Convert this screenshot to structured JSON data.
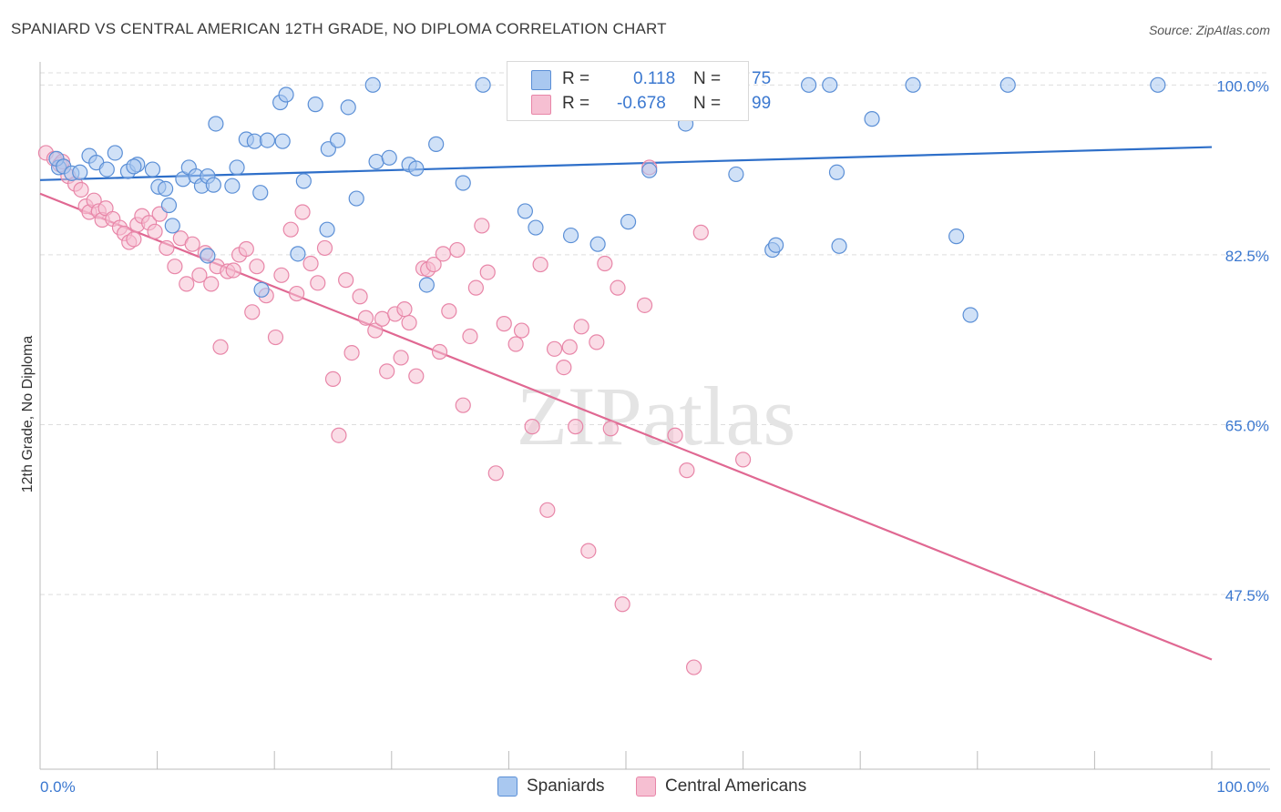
{
  "title": "SPANIARD VS CENTRAL AMERICAN 12TH GRADE, NO DIPLOMA CORRELATION CHART",
  "source": "Source: ZipAtlas.com",
  "watermark": "ZIPatlas",
  "legend_top": [
    {
      "r_label": "R =",
      "r_value": "0.118",
      "n_label": "N =",
      "n_value": "75"
    },
    {
      "r_label": "R =",
      "r_value": "-0.678",
      "n_label": "N =",
      "n_value": "99"
    }
  ],
  "legend_bottom": [
    "Spaniards",
    "Central Americans"
  ],
  "colors": {
    "spaniards_fill": "#a9c8f0",
    "spaniards_stroke": "#5b8fd6",
    "spaniards_line": "#2e6fc9",
    "central_fill": "#f6bfd2",
    "central_stroke": "#e886a8",
    "central_line": "#e06892",
    "accent_text": "#3b78d0",
    "grid": "#dddddd"
  },
  "chart_data": {
    "type": "scatter",
    "title": "SPANIARD VS CENTRAL AMERICAN 12TH GRADE, NO DIPLOMA CORRELATION CHART",
    "xlabel": "",
    "ylabel": "12th Grade, No Diploma",
    "xlim": [
      0,
      100
    ],
    "ylim": [
      29.5,
      102
    ],
    "x_tick_labels": [
      "0.0%",
      "100.0%"
    ],
    "y_ticks": [
      100.0,
      82.5,
      65.0,
      47.5
    ],
    "y_tick_labels": [
      "100.0%",
      "82.5%",
      "65.0%",
      "47.5%"
    ],
    "grid": true,
    "legend_position": "top-center",
    "series": [
      {
        "name": "Spaniards",
        "r": 0.118,
        "n": 75,
        "trend": [
          [
            0,
            90.2
          ],
          [
            100,
            93.6
          ]
        ],
        "points": [
          [
            1.6,
            91.5
          ],
          [
            1.4,
            92.4
          ],
          [
            2.0,
            91.6
          ],
          [
            2.7,
            90.9
          ],
          [
            3.4,
            91.0
          ],
          [
            4.2,
            92.7
          ],
          [
            4.8,
            92.0
          ],
          [
            5.7,
            91.3
          ],
          [
            6.4,
            93.0
          ],
          [
            7.5,
            91.1
          ],
          [
            8.3,
            91.8
          ],
          [
            8.0,
            91.6
          ],
          [
            9.6,
            91.3
          ],
          [
            10.1,
            89.5
          ],
          [
            10.7,
            89.3
          ],
          [
            11.0,
            87.6
          ],
          [
            12.2,
            90.3
          ],
          [
            12.7,
            91.5
          ],
          [
            13.3,
            90.6
          ],
          [
            13.8,
            89.6
          ],
          [
            14.3,
            90.6
          ],
          [
            14.8,
            89.7
          ],
          [
            15.0,
            96.0
          ],
          [
            16.4,
            89.6
          ],
          [
            16.8,
            91.5
          ],
          [
            17.6,
            94.4
          ],
          [
            18.3,
            94.2
          ],
          [
            18.8,
            88.9
          ],
          [
            19.4,
            94.3
          ],
          [
            20.7,
            94.2
          ],
          [
            20.5,
            98.2
          ],
          [
            21.0,
            99.0
          ],
          [
            22.5,
            90.1
          ],
          [
            23.5,
            98.0
          ],
          [
            24.6,
            93.4
          ],
          [
            26.3,
            97.7
          ],
          [
            25.4,
            94.3
          ],
          [
            27.0,
            88.3
          ],
          [
            28.4,
            100.0
          ],
          [
            28.7,
            92.1
          ],
          [
            29.8,
            92.5
          ],
          [
            31.5,
            91.8
          ],
          [
            32.1,
            91.4
          ],
          [
            33.8,
            93.9
          ],
          [
            36.1,
            89.9
          ],
          [
            37.8,
            100.0
          ],
          [
            41.0,
            100.0
          ],
          [
            41.4,
            87.0
          ],
          [
            42.3,
            85.3
          ],
          [
            45.3,
            84.5
          ],
          [
            47.6,
            83.6
          ],
          [
            50.2,
            85.9
          ],
          [
            52.0,
            91.2
          ],
          [
            52.3,
            100.0
          ],
          [
            55.1,
            96.0
          ],
          [
            57.0,
            100.0
          ],
          [
            59.4,
            90.8
          ],
          [
            62.5,
            83.0
          ],
          [
            62.8,
            83.5
          ],
          [
            65.6,
            100.0
          ],
          [
            67.4,
            100.0
          ],
          [
            68.0,
            91.0
          ],
          [
            68.2,
            83.4
          ],
          [
            71.0,
            96.5
          ],
          [
            74.5,
            100.0
          ],
          [
            78.2,
            84.4
          ],
          [
            79.4,
            76.3
          ],
          [
            11.3,
            85.5
          ],
          [
            14.3,
            82.4
          ],
          [
            18.9,
            78.9
          ],
          [
            22.0,
            82.6
          ],
          [
            24.5,
            85.1
          ],
          [
            33.0,
            79.4
          ],
          [
            82.6,
            100.0
          ],
          [
            95.4,
            100.0
          ]
        ]
      },
      {
        "name": "Central Americans",
        "r": -0.678,
        "n": 99,
        "trend": [
          [
            0,
            88.8
          ],
          [
            100,
            40.8
          ]
        ],
        "points": [
          [
            0.5,
            93.0
          ],
          [
            1.2,
            92.4
          ],
          [
            1.7,
            91.8
          ],
          [
            1.9,
            92.1
          ],
          [
            2.4,
            90.6
          ],
          [
            3.0,
            89.8
          ],
          [
            3.5,
            89.2
          ],
          [
            3.9,
            87.5
          ],
          [
            4.2,
            86.9
          ],
          [
            4.6,
            88.1
          ],
          [
            5.0,
            87.0
          ],
          [
            5.3,
            86.1
          ],
          [
            5.6,
            87.3
          ],
          [
            6.2,
            86.2
          ],
          [
            6.8,
            85.3
          ],
          [
            7.2,
            84.7
          ],
          [
            7.6,
            83.8
          ],
          [
            8.0,
            84.1
          ],
          [
            8.3,
            85.6
          ],
          [
            8.7,
            86.5
          ],
          [
            9.3,
            85.8
          ],
          [
            9.8,
            84.9
          ],
          [
            10.2,
            86.7
          ],
          [
            10.8,
            83.2
          ],
          [
            11.5,
            81.3
          ],
          [
            12.0,
            84.2
          ],
          [
            12.5,
            79.5
          ],
          [
            13.0,
            83.6
          ],
          [
            13.6,
            80.4
          ],
          [
            14.1,
            82.7
          ],
          [
            14.6,
            79.5
          ],
          [
            15.1,
            81.3
          ],
          [
            15.4,
            73.0
          ],
          [
            16.0,
            80.8
          ],
          [
            16.5,
            80.9
          ],
          [
            17.0,
            82.5
          ],
          [
            17.6,
            83.1
          ],
          [
            18.1,
            76.6
          ],
          [
            18.5,
            81.3
          ],
          [
            19.3,
            78.3
          ],
          [
            20.1,
            74.0
          ],
          [
            20.6,
            80.4
          ],
          [
            21.4,
            85.1
          ],
          [
            21.9,
            78.5
          ],
          [
            22.4,
            86.9
          ],
          [
            23.1,
            81.6
          ],
          [
            23.7,
            79.6
          ],
          [
            24.3,
            83.2
          ],
          [
            25.0,
            69.7
          ],
          [
            25.5,
            63.9
          ],
          [
            26.1,
            79.9
          ],
          [
            26.6,
            72.4
          ],
          [
            27.3,
            78.2
          ],
          [
            27.8,
            76.0
          ],
          [
            28.6,
            74.7
          ],
          [
            29.2,
            75.9
          ],
          [
            29.6,
            70.5
          ],
          [
            30.3,
            76.4
          ],
          [
            30.8,
            71.9
          ],
          [
            31.1,
            76.9
          ],
          [
            31.5,
            75.5
          ],
          [
            32.1,
            70.0
          ],
          [
            32.7,
            81.1
          ],
          [
            33.1,
            81.0
          ],
          [
            33.6,
            81.5
          ],
          [
            34.1,
            72.5
          ],
          [
            34.4,
            82.6
          ],
          [
            34.9,
            76.7
          ],
          [
            35.6,
            83.0
          ],
          [
            36.1,
            67.0
          ],
          [
            36.7,
            74.1
          ],
          [
            37.2,
            79.1
          ],
          [
            37.7,
            85.5
          ],
          [
            38.2,
            80.7
          ],
          [
            38.9,
            60.0
          ],
          [
            39.6,
            75.4
          ],
          [
            40.6,
            73.3
          ],
          [
            41.1,
            74.7
          ],
          [
            42.0,
            64.8
          ],
          [
            42.7,
            81.5
          ],
          [
            43.3,
            56.2
          ],
          [
            43.9,
            72.8
          ],
          [
            44.7,
            70.9
          ],
          [
            45.2,
            73.0
          ],
          [
            45.7,
            64.8
          ],
          [
            46.2,
            75.1
          ],
          [
            46.8,
            52.0
          ],
          [
            47.5,
            73.5
          ],
          [
            48.2,
            81.6
          ],
          [
            48.7,
            64.6
          ],
          [
            49.3,
            79.1
          ],
          [
            49.7,
            46.5
          ],
          [
            51.6,
            77.3
          ],
          [
            52.0,
            91.5
          ],
          [
            54.2,
            63.9
          ],
          [
            55.2,
            60.3
          ],
          [
            55.8,
            40.0
          ],
          [
            56.4,
            84.8
          ],
          [
            60.0,
            61.4
          ]
        ]
      }
    ]
  }
}
